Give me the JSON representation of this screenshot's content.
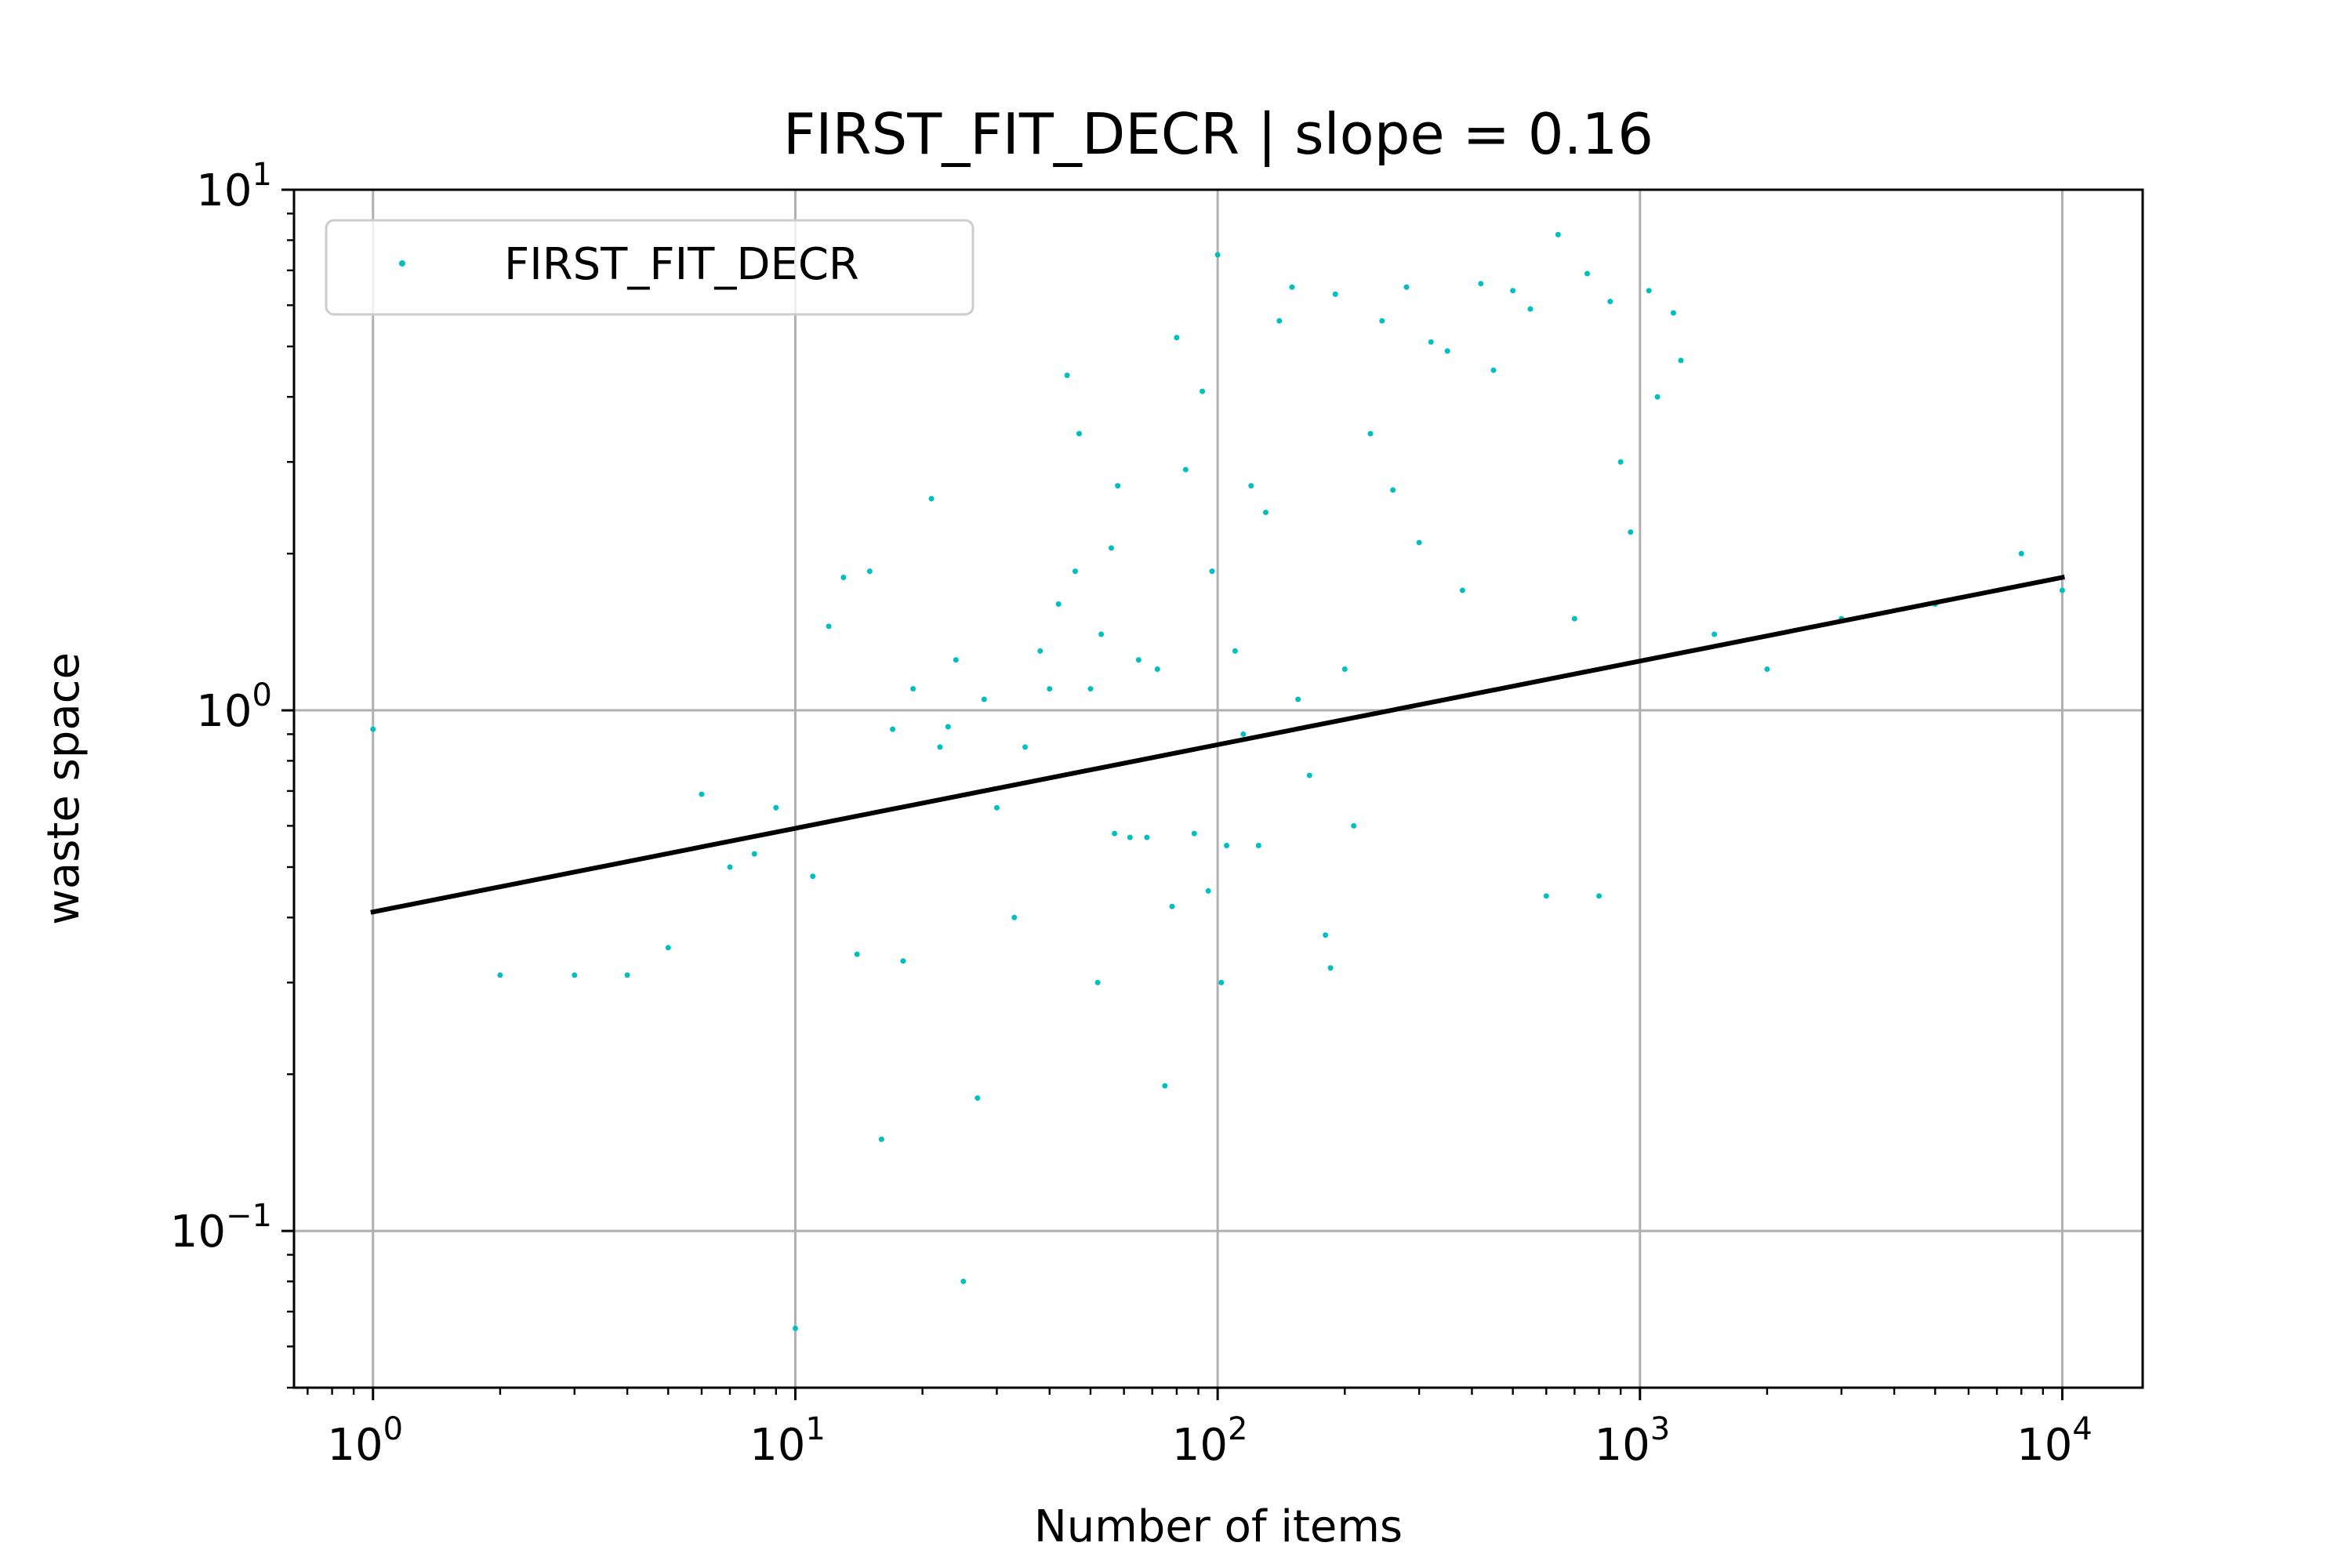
{
  "chart_data": {
    "type": "scatter",
    "title": "FIRST_FIT_DECR | slope = 0.16",
    "xlabel": "Number of items",
    "ylabel": "waste space",
    "xscale": "log",
    "yscale": "log",
    "xlim": [
      0.65,
      15500
    ],
    "ylim": [
      0.05,
      10
    ],
    "grid": true,
    "legend": {
      "placement": "top-left",
      "entries": [
        "FIRST_FIT_DECR"
      ]
    },
    "x_ticks": [
      {
        "base": "10",
        "exp": "0",
        "value": 1
      },
      {
        "base": "10",
        "exp": "1",
        "value": 10
      },
      {
        "base": "10",
        "exp": "2",
        "value": 100
      },
      {
        "base": "10",
        "exp": "3",
        "value": 1000
      },
      {
        "base": "10",
        "exp": "4",
        "value": 10000
      }
    ],
    "y_ticks": [
      {
        "base": "10",
        "exp": "−1",
        "value": 0.1
      },
      {
        "base": "10",
        "exp": "0",
        "value": 1
      },
      {
        "base": "10",
        "exp": "1",
        "value": 10
      }
    ],
    "colors": {
      "points": "#00bfbf",
      "fit": "#000000",
      "grid": "#b0b0b0"
    },
    "series": [
      {
        "name": "FIRST_FIT_DECR",
        "kind": "scatter",
        "color": "#00bfbf",
        "points": [
          [
            1,
            0.92
          ],
          [
            2,
            0.31
          ],
          [
            3,
            0.31
          ],
          [
            4,
            0.31
          ],
          [
            5,
            0.35
          ],
          [
            6,
            0.69
          ],
          [
            7,
            0.5
          ],
          [
            8,
            0.53
          ],
          [
            9,
            0.65
          ],
          [
            10,
            0.065
          ],
          [
            11,
            0.48
          ],
          [
            12,
            1.45
          ],
          [
            13,
            1.8
          ],
          [
            14,
            0.34
          ],
          [
            15,
            1.85
          ],
          [
            16,
            0.15
          ],
          [
            17,
            0.92
          ],
          [
            18,
            0.33
          ],
          [
            19,
            1.1
          ],
          [
            21,
            2.55
          ],
          [
            22,
            0.85
          ],
          [
            23,
            0.93
          ],
          [
            25,
            0.08
          ],
          [
            24,
            1.25
          ],
          [
            27,
            0.18
          ],
          [
            28,
            1.05
          ],
          [
            30,
            0.65
          ],
          [
            33,
            0.4
          ],
          [
            35,
            0.85
          ],
          [
            38,
            1.3
          ],
          [
            40,
            1.1
          ],
          [
            42,
            1.6
          ],
          [
            44,
            4.4
          ],
          [
            46,
            1.85
          ],
          [
            47,
            3.4
          ],
          [
            50,
            1.1
          ],
          [
            52,
            0.3
          ],
          [
            53,
            1.4
          ],
          [
            56,
            2.05
          ],
          [
            57,
            0.58
          ],
          [
            58,
            2.7
          ],
          [
            62,
            0.57
          ],
          [
            65,
            1.25
          ],
          [
            68,
            0.57
          ],
          [
            72,
            1.2
          ],
          [
            75,
            0.19
          ],
          [
            78,
            0.42
          ],
          [
            80,
            5.2
          ],
          [
            84,
            2.9
          ],
          [
            88,
            0.58
          ],
          [
            92,
            4.1
          ],
          [
            95,
            0.45
          ],
          [
            97,
            1.85
          ],
          [
            100,
            7.5
          ],
          [
            102,
            0.3
          ],
          [
            105,
            0.55
          ],
          [
            110,
            1.3
          ],
          [
            115,
            0.9
          ],
          [
            120,
            2.7
          ],
          [
            125,
            0.55
          ],
          [
            130,
            2.4
          ],
          [
            140,
            5.6
          ],
          [
            150,
            6.5
          ],
          [
            155,
            1.05
          ],
          [
            165,
            0.75
          ],
          [
            180,
            0.37
          ],
          [
            185,
            0.32
          ],
          [
            190,
            6.3
          ],
          [
            200,
            1.2
          ],
          [
            210,
            0.6
          ],
          [
            230,
            3.4
          ],
          [
            245,
            5.6
          ],
          [
            260,
            2.65
          ],
          [
            280,
            6.5
          ],
          [
            300,
            2.1
          ],
          [
            320,
            5.1
          ],
          [
            350,
            4.9
          ],
          [
            380,
            1.7
          ],
          [
            420,
            6.6
          ],
          [
            450,
            4.5
          ],
          [
            500,
            6.4
          ],
          [
            550,
            5.9
          ],
          [
            600,
            0.44
          ],
          [
            640,
            8.2
          ],
          [
            700,
            1.5
          ],
          [
            750,
            6.9
          ],
          [
            800,
            0.44
          ],
          [
            850,
            6.1
          ],
          [
            900,
            3.0
          ],
          [
            950,
            2.2
          ],
          [
            1050,
            6.4
          ],
          [
            1100,
            4.0
          ],
          [
            1200,
            5.8
          ],
          [
            1250,
            4.7
          ],
          [
            1500,
            1.4
          ],
          [
            2000,
            1.2
          ],
          [
            3000,
            1.5
          ],
          [
            5000,
            1.6
          ],
          [
            8000,
            2.0
          ],
          [
            10000,
            1.7
          ]
        ]
      },
      {
        "name": "",
        "kind": "fit-line",
        "color": "#000000",
        "slope": 0.16,
        "points": [
          [
            1,
            0.41
          ],
          [
            10000,
            1.8
          ]
        ]
      }
    ]
  }
}
